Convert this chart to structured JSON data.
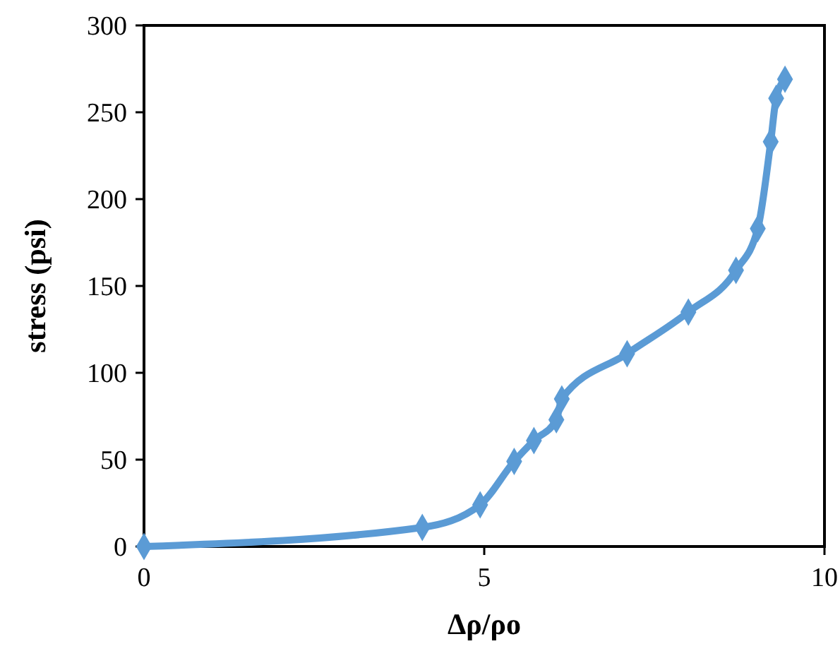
{
  "chart_data": {
    "type": "line",
    "xlabel": "Δρ/ρo",
    "ylabel": "stress (psi)",
    "xlim": [
      0,
      10
    ],
    "xticks": [
      0,
      5,
      10
    ],
    "ylim": [
      0,
      300
    ],
    "yticks": [
      0,
      50,
      100,
      150,
      200,
      250,
      300
    ],
    "grid": false,
    "marker": "diamond",
    "line_style": "solid",
    "series": [
      {
        "color": "#5b9bd5",
        "x": [
          0,
          4.09,
          4.94,
          5.44,
          5.73,
          6.06,
          6.14,
          7.1,
          8.0,
          8.7,
          9.02,
          9.21,
          9.29,
          9.42
        ],
        "values": [
          0,
          11,
          24,
          49,
          61,
          73,
          85,
          111,
          135,
          159,
          183,
          233,
          258,
          269
        ]
      }
    ]
  }
}
